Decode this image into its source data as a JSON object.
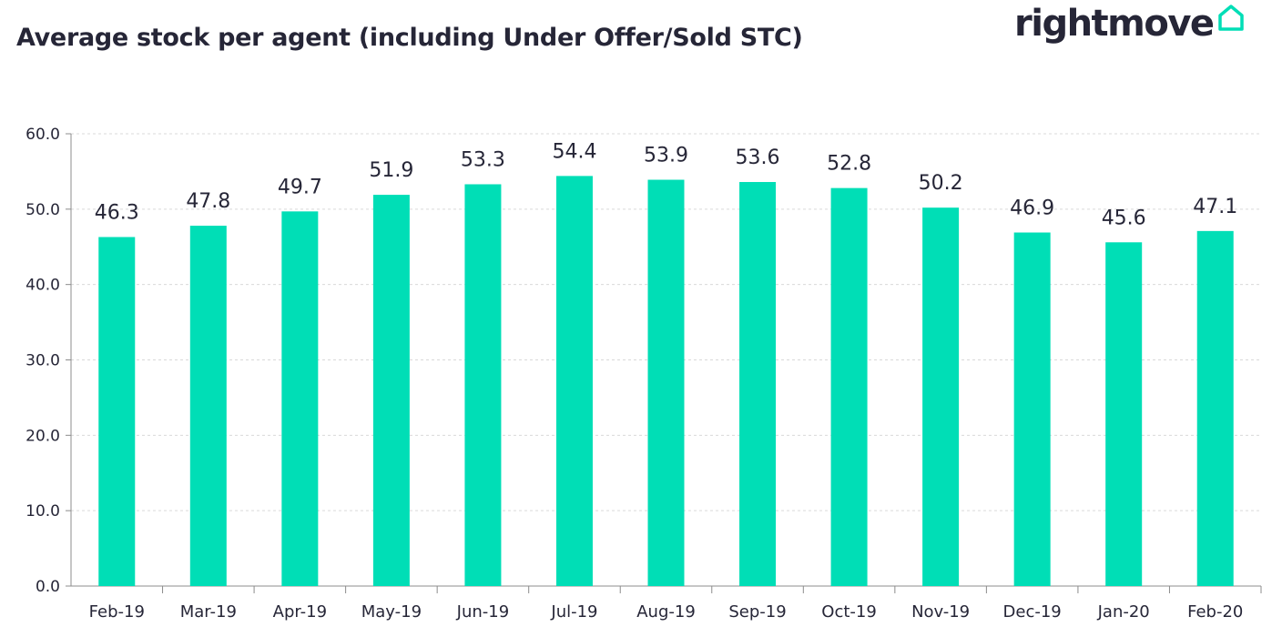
{
  "brand": {
    "name": "rightmove",
    "icon": "house-outline-icon",
    "accent": "#00DEB6"
  },
  "chart_data": {
    "type": "bar",
    "title": "Average stock per agent (including Under Offer/Sold STC)",
    "categories": [
      "Feb-19",
      "Mar-19",
      "Apr-19",
      "May-19",
      "Jun-19",
      "Jul-19",
      "Aug-19",
      "Sep-19",
      "Oct-19",
      "Nov-19",
      "Dec-19",
      "Jan-20",
      "Feb-20"
    ],
    "values": [
      46.3,
      47.8,
      49.7,
      51.9,
      53.3,
      54.4,
      53.9,
      53.6,
      52.8,
      50.2,
      46.9,
      45.6,
      47.1
    ],
    "value_labels": [
      "46.3",
      "47.8",
      "49.7",
      "51.9",
      "53.3",
      "54.4",
      "53.9",
      "53.6",
      "52.8",
      "50.2",
      "46.9",
      "45.6",
      "47.1"
    ],
    "yticks": [
      "0.0",
      "10.0",
      "20.0",
      "30.0",
      "40.0",
      "50.0",
      "60.0"
    ],
    "ylim": [
      0,
      60
    ],
    "xlabel": "",
    "ylabel": "",
    "grid": true,
    "legend": "none",
    "bar_color": "#00DEB6"
  }
}
